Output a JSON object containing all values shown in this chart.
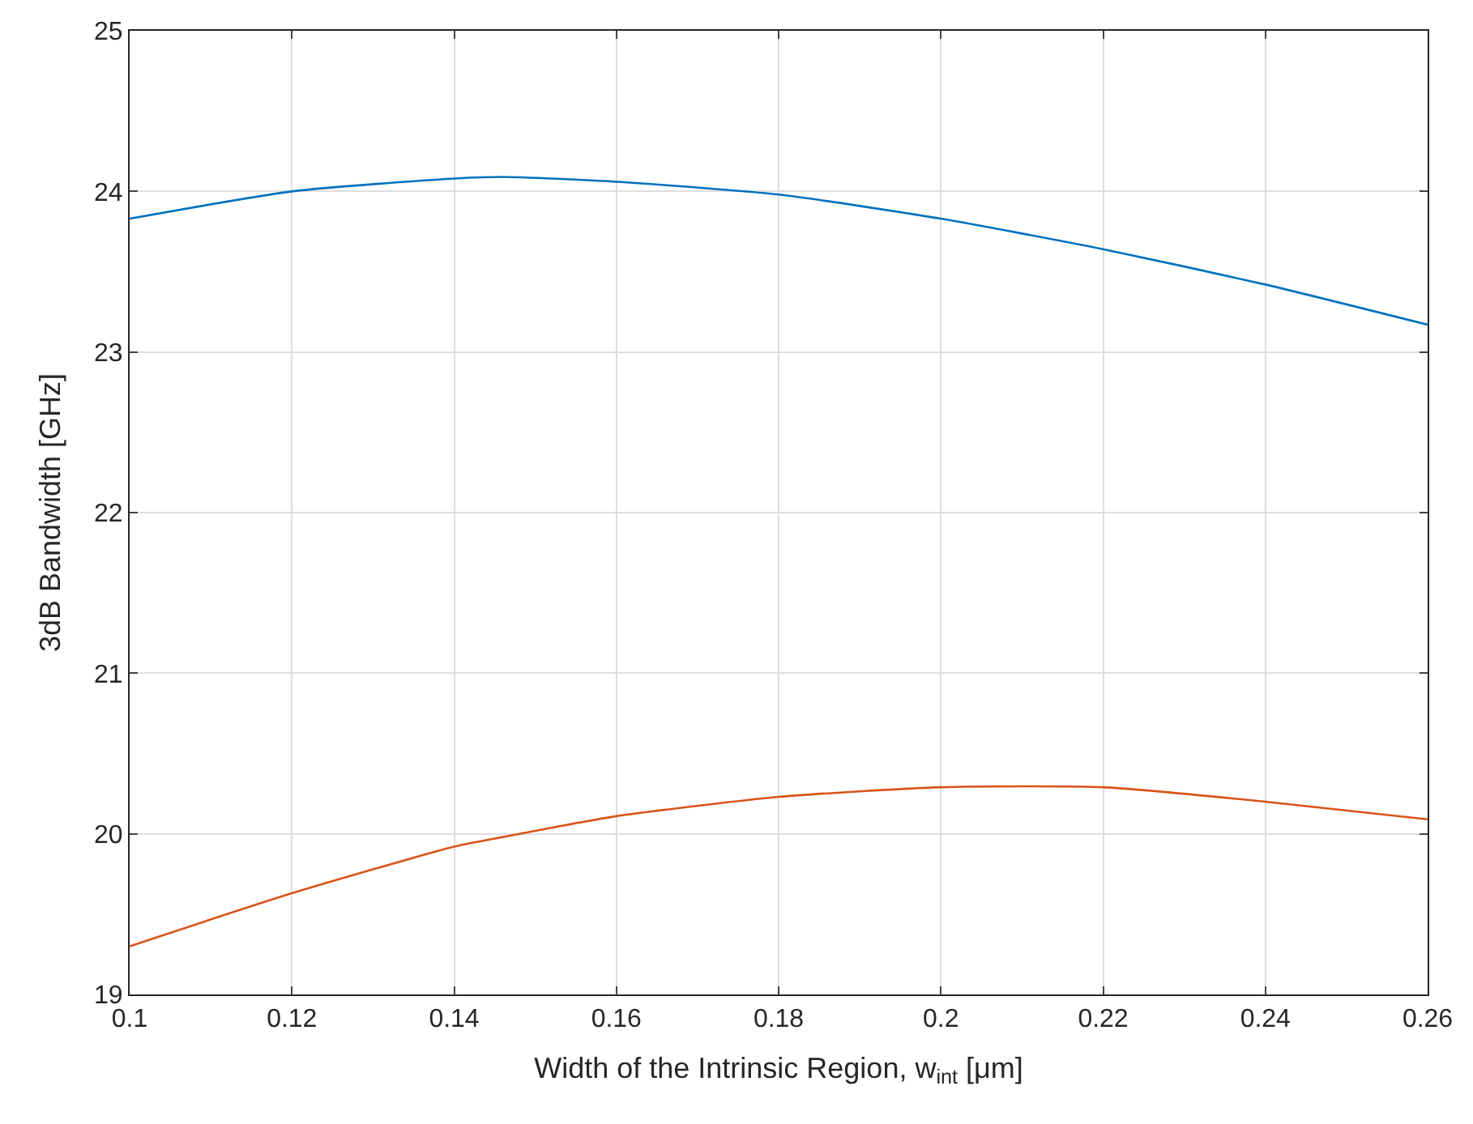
{
  "chart_data": {
    "type": "line",
    "xlabel": "Width of the Intrinsic Region, w$_{int}$ [μm]",
    "ylabel": "3dB Bandwidth [GHz]",
    "x": [
      0.1,
      0.12,
      0.14,
      0.146,
      0.16,
      0.18,
      0.2,
      0.22,
      0.24,
      0.26
    ],
    "series": [
      {
        "color": "#0072bd",
        "values": [
          23.83,
          24.0,
          24.08,
          24.09,
          24.06,
          23.98,
          23.83,
          23.64,
          23.42,
          23.17
        ]
      },
      {
        "color": "#d95319",
        "values": [
          19.3,
          19.63,
          19.92,
          19.98,
          20.11,
          20.23,
          20.29,
          20.29,
          20.2,
          20.09
        ]
      }
    ],
    "xlim": [
      0.1,
      0.26
    ],
    "xticks": [
      0.1,
      0.12,
      0.14,
      0.16,
      0.18,
      0.2,
      0.22,
      0.24,
      0.26
    ],
    "ylim": [
      19,
      25
    ],
    "yticks": [
      19,
      20,
      21,
      22,
      23,
      24,
      25
    ],
    "grid": true,
    "marker": "none",
    "line_style": "solid"
  }
}
